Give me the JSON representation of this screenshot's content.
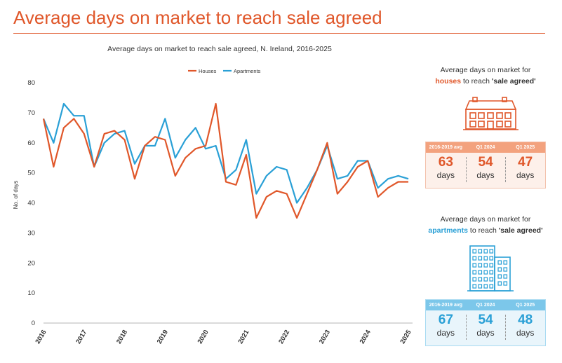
{
  "page": {
    "title": "Average days on market to reach sale agreed"
  },
  "chart_data": {
    "type": "line",
    "title": "Average days on market to reach sale agreed, N. Ireland, 2016-2025",
    "ylabel": "No. of days",
    "xlabel": "",
    "ylim": [
      0,
      80
    ],
    "yticks": [
      0,
      10,
      20,
      30,
      40,
      50,
      60,
      70,
      80
    ],
    "xlim": [
      2016,
      2025
    ],
    "xticks": [
      "2016",
      "2017",
      "2018",
      "2019",
      "2020",
      "2021",
      "2022",
      "2023",
      "2024",
      "2025"
    ],
    "grid": false,
    "legend": "top-center",
    "series": [
      {
        "name": "Houses",
        "color": "#e0572a",
        "x": [
          "2016 Q1",
          "2016 Q2",
          "2016 Q3",
          "2016 Q4",
          "2017 Q1",
          "2017 Q2",
          "2017 Q3",
          "2017 Q4",
          "2018 Q1",
          "2018 Q2",
          "2018 Q3",
          "2018 Q4",
          "2019 Q1",
          "2019 Q2",
          "2019 Q3",
          "2019 Q4",
          "2020 Q1",
          "2020 Q2",
          "2020 Q3",
          "2020 Q4",
          "2021 Q1",
          "2021 Q2",
          "2021 Q3",
          "2021 Q4",
          "2022 Q1",
          "2022 Q2",
          "2022 Q3",
          "2022 Q4",
          "2023 Q1",
          "2023 Q2",
          "2023 Q3",
          "2023 Q4",
          "2024 Q1",
          "2024 Q2",
          "2024 Q3",
          "2024 Q4",
          "2025 Q1"
        ],
        "values": [
          68,
          52,
          65,
          68,
          63,
          52,
          63,
          64,
          61,
          48,
          59,
          62,
          61,
          49,
          55,
          58,
          59,
          73,
          47,
          46,
          56,
          35,
          42,
          44,
          43,
          35,
          43,
          51,
          60,
          43,
          47,
          52,
          54,
          42,
          45,
          47,
          47
        ]
      },
      {
        "name": "Apartments",
        "color": "#2aa0d6",
        "x": [
          "2016 Q1",
          "2016 Q2",
          "2016 Q3",
          "2016 Q4",
          "2017 Q1",
          "2017 Q2",
          "2017 Q3",
          "2017 Q4",
          "2018 Q1",
          "2018 Q2",
          "2018 Q3",
          "2018 Q4",
          "2019 Q1",
          "2019 Q2",
          "2019 Q3",
          "2019 Q4",
          "2020 Q1",
          "2020 Q2",
          "2020 Q3",
          "2020 Q4",
          "2021 Q1",
          "2021 Q2",
          "2021 Q3",
          "2021 Q4",
          "2022 Q1",
          "2022 Q2",
          "2022 Q3",
          "2022 Q4",
          "2023 Q1",
          "2023 Q2",
          "2023 Q3",
          "2023 Q4",
          "2024 Q1",
          "2024 Q2",
          "2024 Q3",
          "2024 Q4",
          "2025 Q1"
        ],
        "values": [
          68,
          60,
          73,
          69,
          69,
          52,
          60,
          63,
          64,
          53,
          59,
          59,
          68,
          55,
          61,
          65,
          58,
          59,
          48,
          51,
          61,
          43,
          49,
          52,
          51,
          40,
          45,
          51,
          59,
          48,
          49,
          54,
          54,
          45,
          48,
          49,
          48
        ]
      }
    ]
  },
  "houses_panel": {
    "line1": "Average days on market for",
    "highlight": "houses",
    "mid": " to reach ",
    "quoted": "'sale agreed'",
    "color": "#e0572a",
    "icon": "house-icon",
    "headers": [
      "2016-2019 avg",
      "Q1 2024",
      "Q1 2025"
    ],
    "values": [
      "63",
      "54",
      "47"
    ],
    "unit": "days"
  },
  "apartments_panel": {
    "line1": "Average days on market for",
    "highlight": "apartments",
    "mid": " to reach ",
    "quoted": "'sale agreed'",
    "color": "#2aa0d6",
    "icon": "apartment-building-icon",
    "headers": [
      "2016-2019 avg",
      "Q1 2024",
      "Q1 2025"
    ],
    "values": [
      "67",
      "54",
      "48"
    ],
    "unit": "days"
  }
}
